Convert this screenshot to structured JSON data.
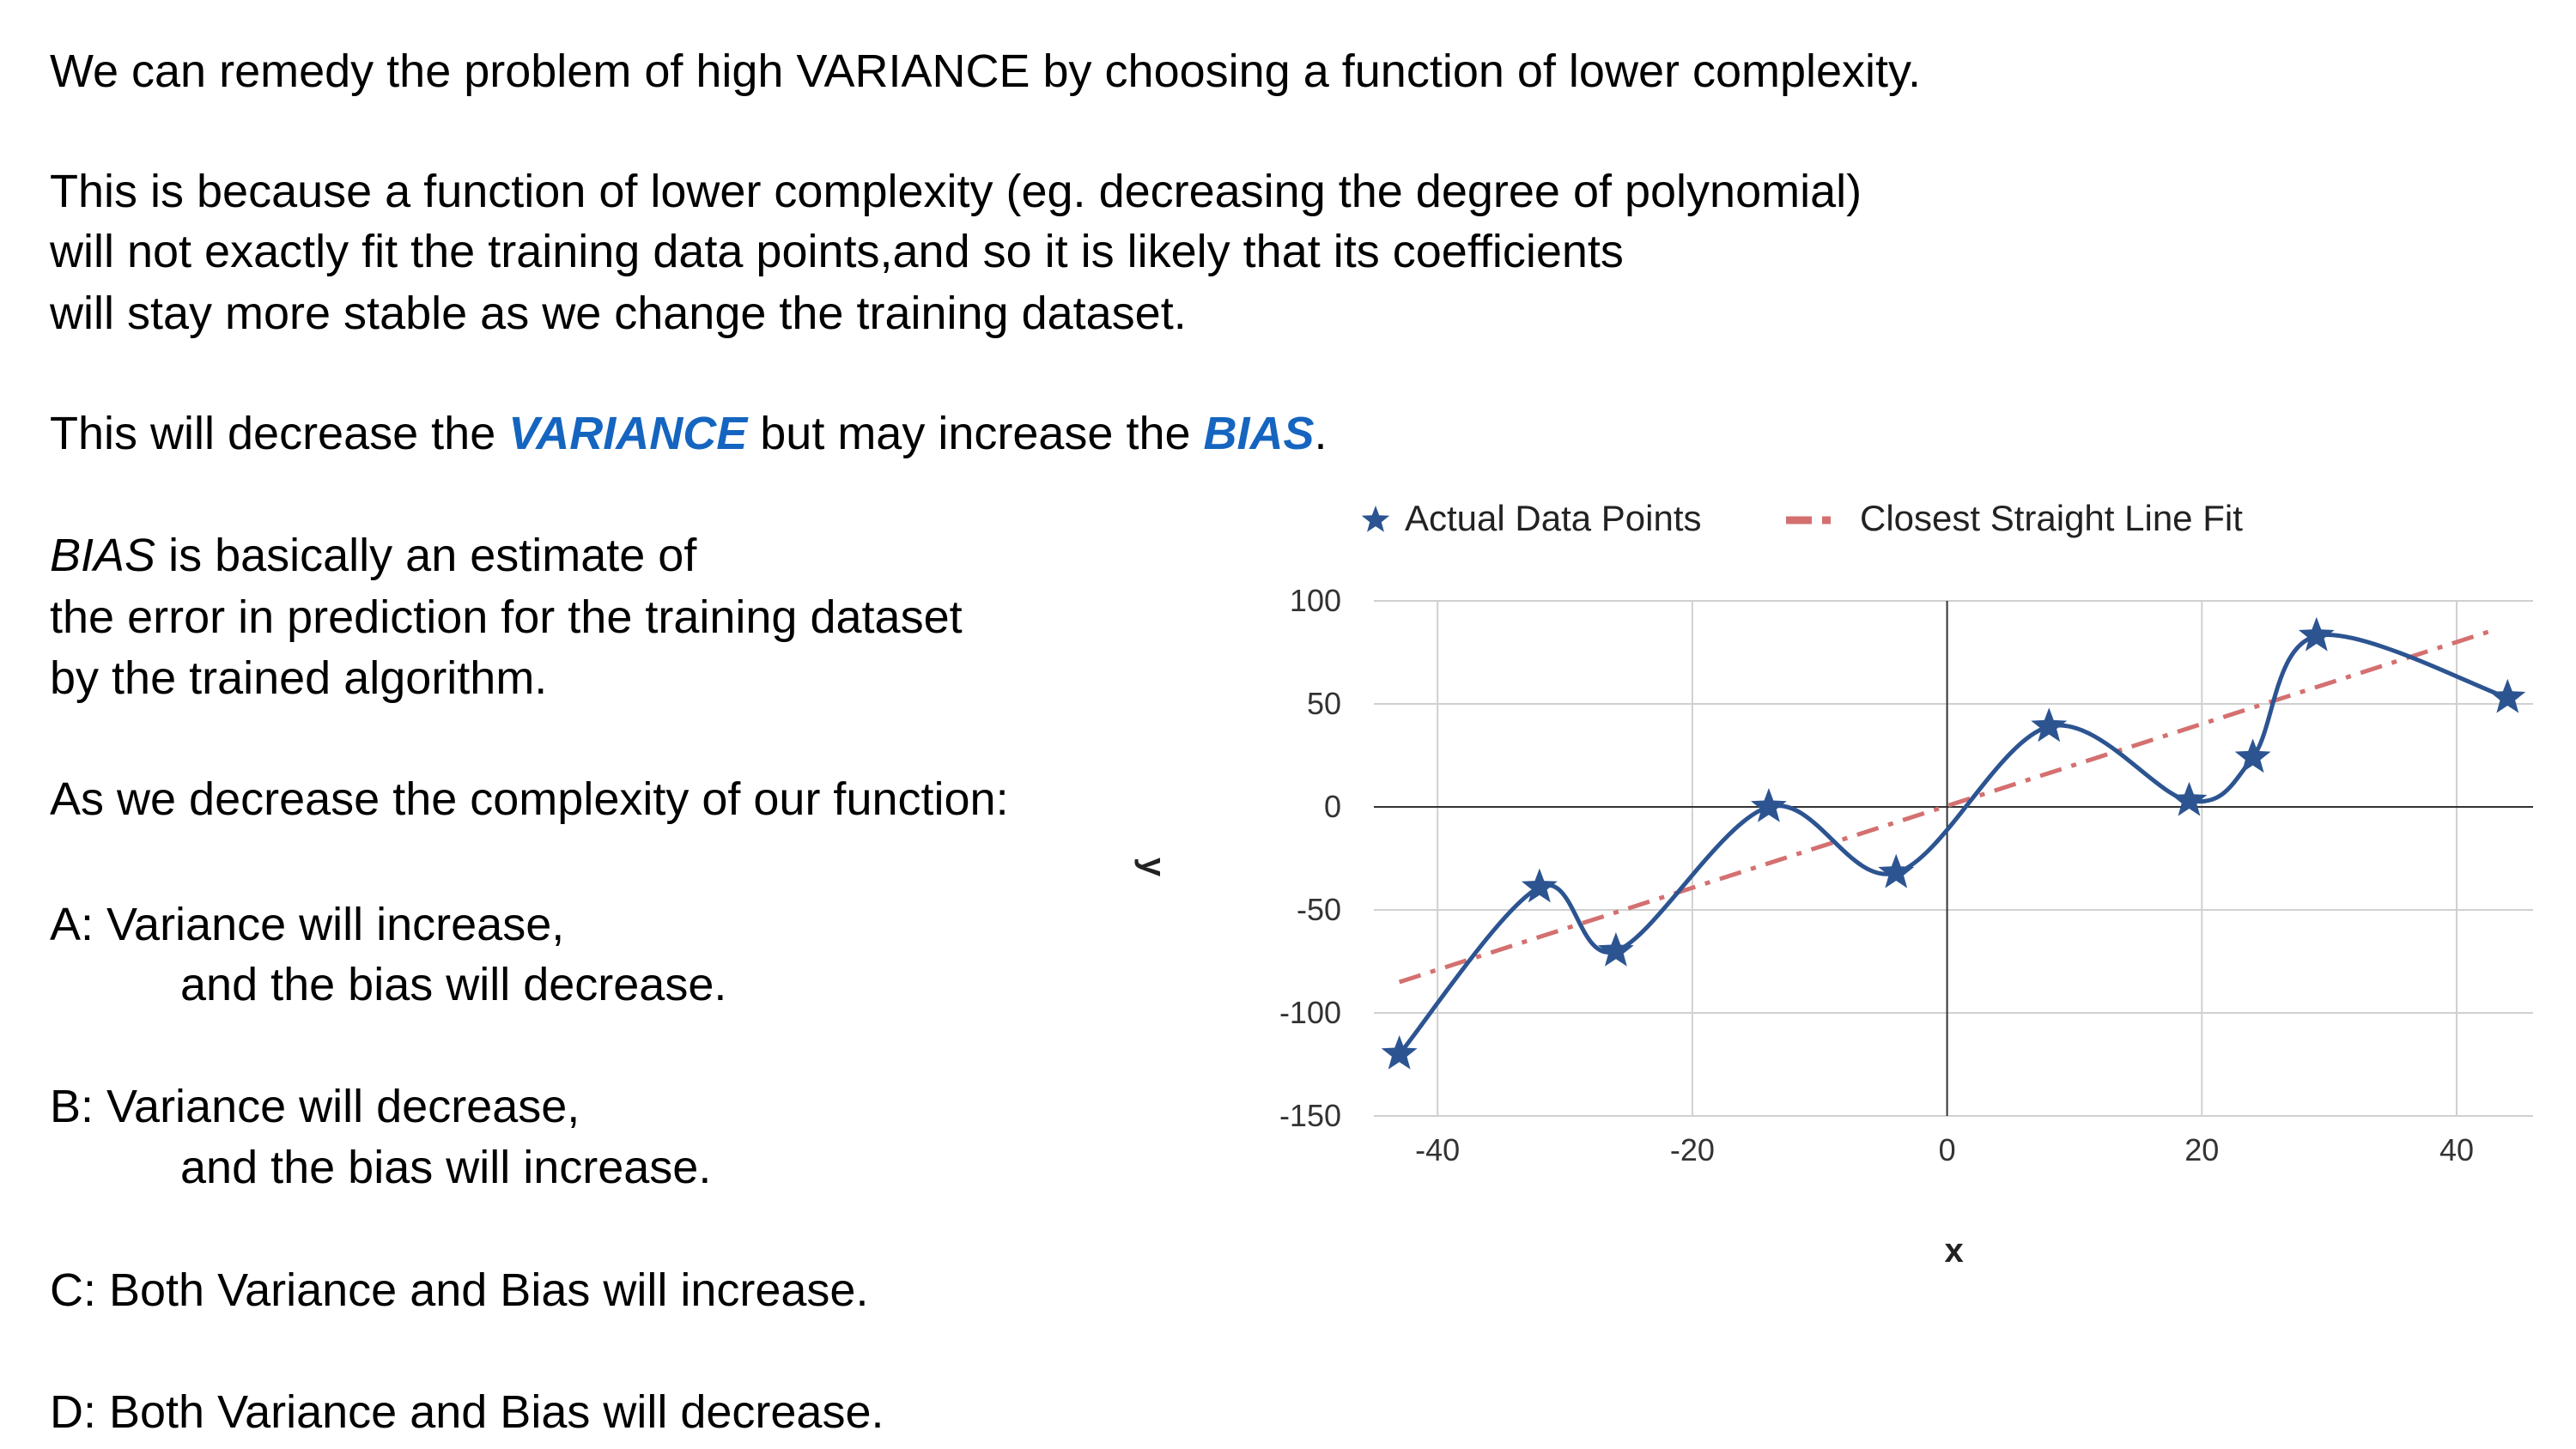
{
  "text": {
    "line1": "We can remedy the problem of high VARIANCE by choosing a function of lower complexity.",
    "para2": [
      "This is because a function of lower complexity (eg. decreasing the degree of polynomial)",
      "will not exactly fit the training data points,and so it is likely that its coefficients",
      "will stay more stable as we change the training dataset."
    ],
    "line3": {
      "before": "This will decrease the ",
      "variance": "VARIANCE",
      "middle": " but may increase the ",
      "bias": "BIAS",
      "end": "."
    },
    "bias_def": {
      "bias_word": "BIAS",
      "rest1": " is basically an estimate of",
      "line2": "the error in prediction for the training dataset",
      "line3": "by the trained algorithm."
    },
    "question": "As we decrease the complexity of our function:",
    "options": [
      {
        "line1": "A: Variance will increase,",
        "line2": "and the bias will decrease."
      },
      {
        "line1": "B: Variance will decrease,",
        "line2": "and the bias will increase."
      },
      {
        "line1": "C: Both Variance and Bias will increase.",
        "line2": ""
      },
      {
        "line1": "D: Both Variance and Bias will decrease.",
        "line2": ""
      }
    ],
    "highlight_color": "#1565c0"
  },
  "chart_data": {
    "type": "line",
    "xlabel": "x",
    "ylabel": "y",
    "xlim": [
      -45,
      46
    ],
    "ylim": [
      -150,
      100
    ],
    "x_ticks": [
      -40,
      -20,
      0,
      20,
      40
    ],
    "y_ticks": [
      100,
      50,
      0,
      -50,
      -100,
      -150
    ],
    "grid": true,
    "legend_position": "top",
    "series": [
      {
        "name": "Actual Data Points",
        "style": "smooth line with star markers",
        "color": "#2c5491",
        "x": [
          -43,
          -32,
          -26,
          -14,
          -4,
          8,
          19,
          24,
          29,
          44
        ],
        "y": [
          -120,
          -39,
          -70,
          0,
          -32,
          39,
          3,
          24,
          83,
          53
        ]
      },
      {
        "name": "Closest Straight Line Fit",
        "style": "dash-dot line",
        "color": "#d47070",
        "x": [
          -43,
          43
        ],
        "y": [
          -85,
          86
        ]
      }
    ]
  }
}
